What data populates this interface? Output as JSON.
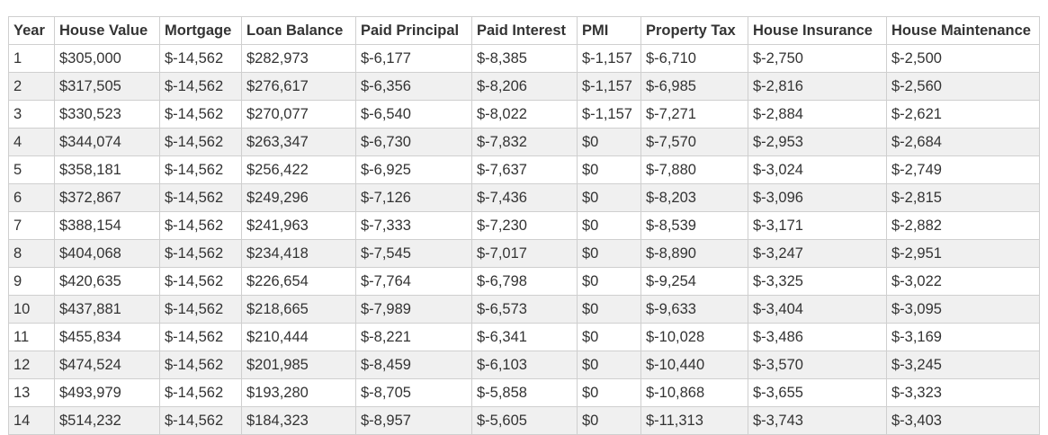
{
  "table": {
    "headers": [
      "Year",
      "House Value",
      "Mortgage",
      "Loan Balance",
      "Paid Principal",
      "Paid Interest",
      "PMI",
      "Property Tax",
      "House Insurance",
      "House Maintenance"
    ],
    "rows": [
      [
        "1",
        "$305,000",
        "$-14,562",
        "$282,973",
        "$-6,177",
        "$-8,385",
        "$-1,157",
        "$-6,710",
        "$-2,750",
        "$-2,500"
      ],
      [
        "2",
        "$317,505",
        "$-14,562",
        "$276,617",
        "$-6,356",
        "$-8,206",
        "$-1,157",
        "$-6,985",
        "$-2,816",
        "$-2,560"
      ],
      [
        "3",
        "$330,523",
        "$-14,562",
        "$270,077",
        "$-6,540",
        "$-8,022",
        "$-1,157",
        "$-7,271",
        "$-2,884",
        "$-2,621"
      ],
      [
        "4",
        "$344,074",
        "$-14,562",
        "$263,347",
        "$-6,730",
        "$-7,832",
        "$0",
        "$-7,570",
        "$-2,953",
        "$-2,684"
      ],
      [
        "5",
        "$358,181",
        "$-14,562",
        "$256,422",
        "$-6,925",
        "$-7,637",
        "$0",
        "$-7,880",
        "$-3,024",
        "$-2,749"
      ],
      [
        "6",
        "$372,867",
        "$-14,562",
        "$249,296",
        "$-7,126",
        "$-7,436",
        "$0",
        "$-8,203",
        "$-3,096",
        "$-2,815"
      ],
      [
        "7",
        "$388,154",
        "$-14,562",
        "$241,963",
        "$-7,333",
        "$-7,230",
        "$0",
        "$-8,539",
        "$-3,171",
        "$-2,882"
      ],
      [
        "8",
        "$404,068",
        "$-14,562",
        "$234,418",
        "$-7,545",
        "$-7,017",
        "$0",
        "$-8,890",
        "$-3,247",
        "$-2,951"
      ],
      [
        "9",
        "$420,635",
        "$-14,562",
        "$226,654",
        "$-7,764",
        "$-6,798",
        "$0",
        "$-9,254",
        "$-3,325",
        "$-3,022"
      ],
      [
        "10",
        "$437,881",
        "$-14,562",
        "$218,665",
        "$-7,989",
        "$-6,573",
        "$0",
        "$-9,633",
        "$-3,404",
        "$-3,095"
      ],
      [
        "11",
        "$455,834",
        "$-14,562",
        "$210,444",
        "$-8,221",
        "$-6,341",
        "$0",
        "$-10,028",
        "$-3,486",
        "$-3,169"
      ],
      [
        "12",
        "$474,524",
        "$-14,562",
        "$201,985",
        "$-8,459",
        "$-6,103",
        "$0",
        "$-10,440",
        "$-3,570",
        "$-3,245"
      ],
      [
        "13",
        "$493,979",
        "$-14,562",
        "$193,280",
        "$-8,705",
        "$-5,858",
        "$0",
        "$-10,868",
        "$-3,655",
        "$-3,323"
      ],
      [
        "14",
        "$514,232",
        "$-14,562",
        "$184,323",
        "$-8,957",
        "$-5,605",
        "$0",
        "$-11,313",
        "$-3,743",
        "$-3,403"
      ]
    ]
  }
}
